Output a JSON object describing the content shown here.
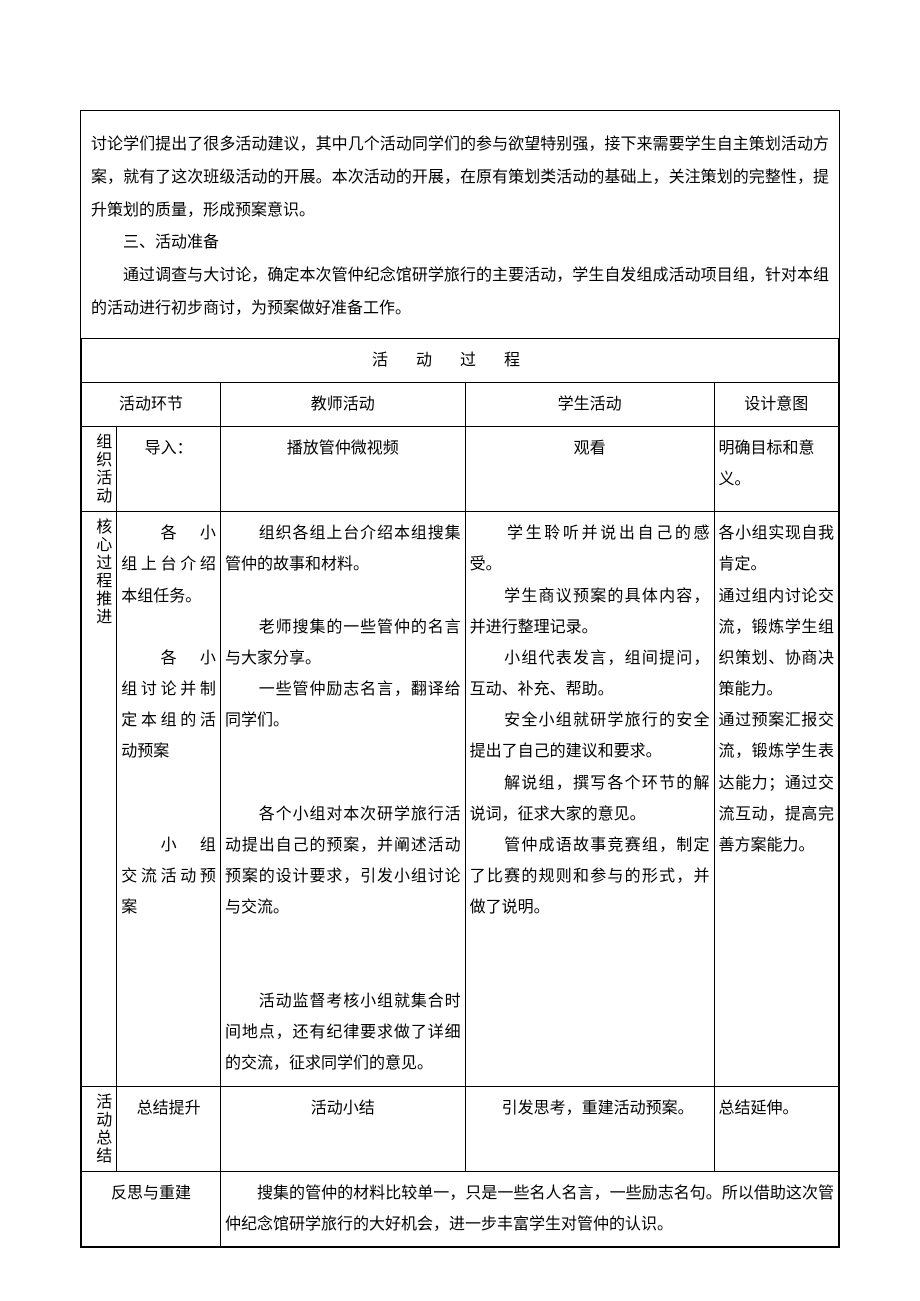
{
  "intro": {
    "p1": "讨论学们提出了很多活动建议，其中几个活动同学们的参与欲望特别强，接下来需要学生自主策划活动方案，就有了这次班级活动的开展。本次活动的开展，在原有策划类活动的基础上，关注策划的完整性，提升策划的质量，形成预案意识。",
    "h3": "三、活动准备",
    "p2": "通过调查与大讨论，确定本次管仲纪念馆研学旅行的主要活动，学生自发组成活动项目组，针对本组的活动进行初步商讨，为预案做好准备工作。"
  },
  "process_title": "活动过程",
  "headers": {
    "stage": "活动环节",
    "teacher": "教师活动",
    "student": "学生活动",
    "intent": "设计意图"
  },
  "rows": {
    "org": {
      "vlabel": "组织活动",
      "name": "导入：",
      "teacher": "播放管仲微视频",
      "student": "观看",
      "intent": "明确目标和意义。"
    },
    "core": {
      "vlabel": "核心过程推进",
      "name": "　　各　小组上台介绍本组任务。\n\n　　各　小组讨论并制定本组的活动预案\n\n\n　　小　组交流活动预案",
      "teacher": "　　组织各组上台介绍本组搜集管仲的故事和材料。\n\n　　老师搜集的一些管仲的名言与大家分享。\n　　一些管仲励志名言，翻译给同学们。\n\n\n　　各个小组对本次研学旅行活动提出自己的预案，并阐述活动预案的设计要求，引发小组讨论与交流。\n\n\n　　活动监督考核小组就集合时间地点，还有纪律要求做了详细的交流，征求同学们的意见。",
      "student": "　　学生聆听并说出自己的感受。\n　　学生商议预案的具体内容，并进行整理记录。\n　　小组代表发言，组间提问，互动、补充、帮助。\n　　安全小组就研学旅行的安全提出了自己的建议和要求。\n　　解说组，撰写各个环节的解说词，征求大家的意见。\n　　管仲成语故事竞赛组，制定了比赛的规则和参与的形式，并做了说明。",
      "intent": "各小组实现自我肯定。\n通过组内讨论交流，锻炼学生组织策划、协商决策能力。\n通过预案汇报交流，锻炼学生表达能力；通过交流互动，提高完善方案能力。"
    },
    "summary": {
      "vlabel": "活动总结",
      "name": "总结提升",
      "teacher": "活动小结",
      "student": "　　引发思考，重建活动预案。",
      "intent": "总结延伸。"
    }
  },
  "reflect": {
    "label": "反思与重建",
    "text": "　　搜集的管仲的材料比较单一，只是一些名人名言，一些励志名句。所以借助这次管仲纪念馆研学旅行的大好机会，进一步丰富学生对管仲的认识。"
  }
}
